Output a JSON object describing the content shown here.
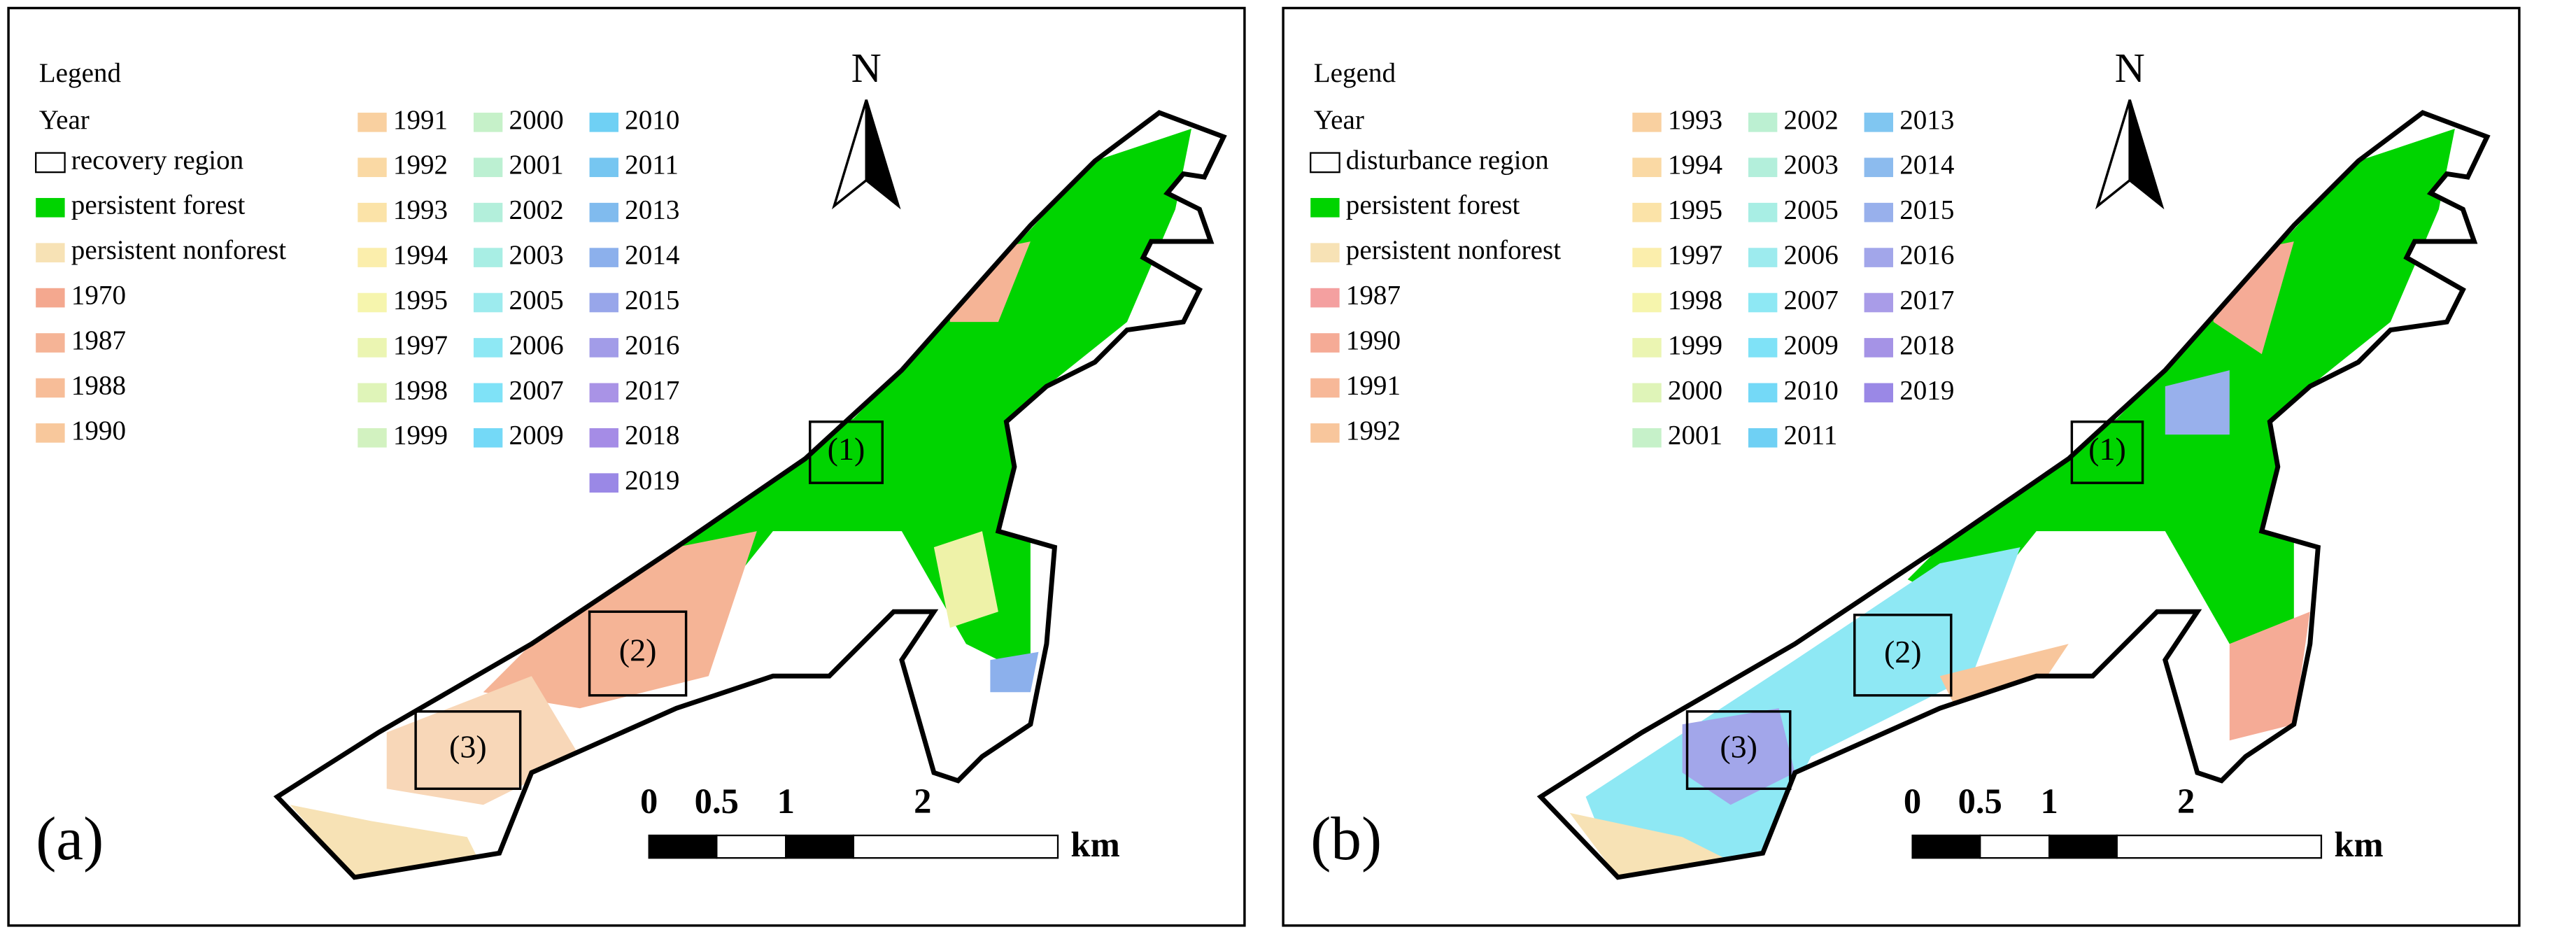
{
  "panels": [
    {
      "label": "(a)",
      "legend_title": "Legend",
      "year_label": "Year",
      "north": "N",
      "boxes": [
        "(1)",
        "(2)",
        "(3)"
      ],
      "scale": {
        "ticks": [
          "0",
          "0.5",
          "1",
          "2"
        ],
        "unit": "km"
      },
      "legend": {
        "columns": [
          [
            {
              "label": "recovery region",
              "color": "#ffffff"
            },
            {
              "label": "persistent forest",
              "color": "#00d400"
            },
            {
              "label": "persistent nonforest",
              "color": "#f7e2b5"
            },
            {
              "label": "1970",
              "color": "#f4a88f"
            },
            {
              "label": "1987",
              "color": "#f5b496"
            },
            {
              "label": "1988",
              "color": "#f7bd98"
            },
            {
              "label": "1990",
              "color": "#f8c89c"
            }
          ],
          [
            {
              "label": "1991",
              "color": "#f9d0a0"
            },
            {
              "label": "1992",
              "color": "#fad9a4"
            },
            {
              "label": "1993",
              "color": "#fbe3a8"
            },
            {
              "label": "1994",
              "color": "#fbeeac"
            },
            {
              "label": "1995",
              "color": "#f6f5ad"
            },
            {
              "label": "1997",
              "color": "#ebf5b2"
            },
            {
              "label": "1998",
              "color": "#dff4b8"
            },
            {
              "label": "1999",
              "color": "#d2f2c0"
            }
          ],
          [
            {
              "label": "2000",
              "color": "#c6f1c9"
            },
            {
              "label": "2001",
              "color": "#bcf0d2"
            },
            {
              "label": "2002",
              "color": "#b3efdb"
            },
            {
              "label": "2003",
              "color": "#a8eee4"
            },
            {
              "label": "2005",
              "color": "#9debee"
            },
            {
              "label": "2006",
              "color": "#8ee8f4"
            },
            {
              "label": "2007",
              "color": "#7fe2f7"
            },
            {
              "label": "2009",
              "color": "#74d9f7"
            }
          ],
          [
            {
              "label": "2010",
              "color": "#6fd0f4"
            },
            {
              "label": "2011",
              "color": "#76c6f1"
            },
            {
              "label": "2013",
              "color": "#80bbee"
            },
            {
              "label": "2014",
              "color": "#8cb0ec"
            },
            {
              "label": "2015",
              "color": "#98a6ea"
            },
            {
              "label": "2016",
              "color": "#a29ce8"
            },
            {
              "label": "2017",
              "color": "#a993e6"
            },
            {
              "label": "2018",
              "color": "#a58ce6"
            },
            {
              "label": "2019",
              "color": "#9a88e6"
            }
          ]
        ]
      }
    },
    {
      "label": "(b)",
      "legend_title": "Legend",
      "year_label": "Year",
      "north": "N",
      "boxes": [
        "(1)",
        "(2)",
        "(3)"
      ],
      "scale": {
        "ticks": [
          "0",
          "0.5",
          "1",
          "2"
        ],
        "unit": "km"
      },
      "legend": {
        "columns": [
          [
            {
              "label": "disturbance region",
              "color": "#ffffff"
            },
            {
              "label": "persistent forest",
              "color": "#00d400"
            },
            {
              "label": "persistent nonforest",
              "color": "#f7e2b5"
            },
            {
              "label": "1987",
              "color": "#f4a0a0"
            },
            {
              "label": "1990",
              "color": "#f5ab96"
            },
            {
              "label": "1991",
              "color": "#f7b898"
            },
            {
              "label": "1992",
              "color": "#f8c69c"
            }
          ],
          [
            {
              "label": "1993",
              "color": "#f9d0a0"
            },
            {
              "label": "1994",
              "color": "#fad9a4"
            },
            {
              "label": "1995",
              "color": "#fbe3a8"
            },
            {
              "label": "1997",
              "color": "#fbeeac"
            },
            {
              "label": "1998",
              "color": "#f6f5ad"
            },
            {
              "label": "1999",
              "color": "#ebf5b2"
            },
            {
              "label": "2000",
              "color": "#dff4b8"
            },
            {
              "label": "2001",
              "color": "#c6f1c9"
            }
          ],
          [
            {
              "label": "2002",
              "color": "#bcf0d2"
            },
            {
              "label": "2003",
              "color": "#b3efdb"
            },
            {
              "label": "2005",
              "color": "#a8eee4"
            },
            {
              "label": "2006",
              "color": "#9debee"
            },
            {
              "label": "2007",
              "color": "#8ee8f4"
            },
            {
              "label": "2009",
              "color": "#7fe2f7"
            },
            {
              "label": "2010",
              "color": "#74d9f7"
            },
            {
              "label": "2011",
              "color": "#6fd0f4"
            }
          ],
          [
            {
              "label": "2013",
              "color": "#80c6f1"
            },
            {
              "label": "2014",
              "color": "#8cbbee"
            },
            {
              "label": "2015",
              "color": "#98b0ec"
            },
            {
              "label": "2016",
              "color": "#a2a6ea"
            },
            {
              "label": "2017",
              "color": "#a99ce8"
            },
            {
              "label": "2018",
              "color": "#a593e6"
            },
            {
              "label": "2019",
              "color": "#9a88e6"
            }
          ]
        ]
      }
    }
  ]
}
